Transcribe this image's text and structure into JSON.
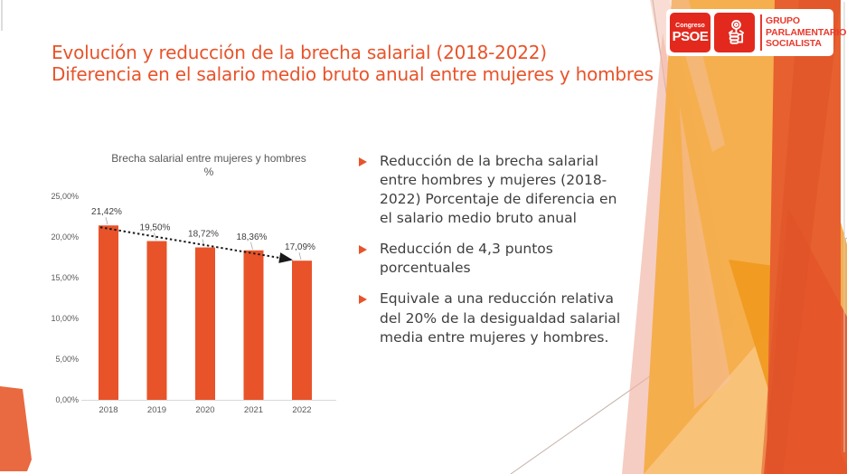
{
  "slide": {
    "title_line1": "Evolución y reducción de la brecha salarial (2018-2022)",
    "title_line2": "Diferencia en el salario medio bruto anual entre mujeres y hombres"
  },
  "logo": {
    "congreso_label": "Congreso",
    "psoe_label": "PSOE",
    "emblem": "fist-and-rose",
    "group_line1": "GRUPO",
    "group_line2": "PARLAMENTARIO",
    "group_line3": "SOCIALISTA",
    "brand_red": "#E3291E"
  },
  "bullets": [
    {
      "text": "Reducción de la brecha salarial entre hombres y mujeres (2018-2022) Porcentaje de diferencia en el salario medio bruto anual"
    },
    {
      "text": "Reducción de 4,3 puntos porcentuales"
    },
    {
      "text": "Equivale a una reducción relativa del 20% de la desigualdad salarial media entre mujeres y hombres."
    }
  ],
  "chart_data": {
    "type": "bar",
    "title": "Brecha salarial entre mujeres y hombres",
    "subtitle": "%",
    "categories": [
      "2018",
      "2019",
      "2020",
      "2021",
      "2022"
    ],
    "values": [
      21.42,
      19.5,
      18.72,
      18.36,
      17.09
    ],
    "data_labels": [
      "21,42%",
      "19,50%",
      "18,72%",
      "18,36%",
      "17,09%"
    ],
    "y_ticks": [
      "0,00%",
      "5,00%",
      "10,00%",
      "15,00%",
      "20,00%",
      "25,00%"
    ],
    "ylim": [
      0,
      25
    ],
    "xlabel": "",
    "ylabel": "",
    "grid": false,
    "legend": null,
    "bar_color": "#E8532A",
    "trendline": true,
    "trendline_color": "#1a1a1a"
  },
  "colors": {
    "accent_orange": "#E8532A",
    "amber": "#F5AC48",
    "dark_shard": "#E7602F",
    "text_gray": "#3F3F3F",
    "chart_text": "#595959"
  }
}
